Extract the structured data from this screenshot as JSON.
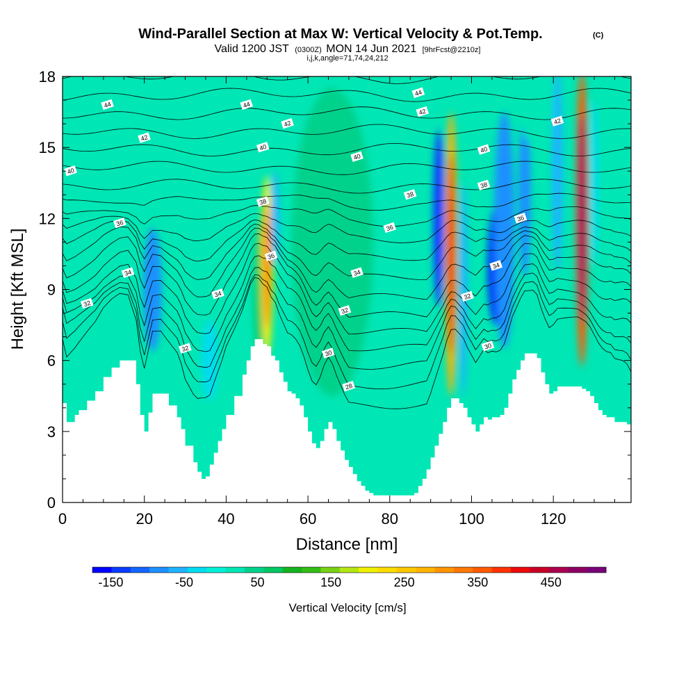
{
  "chart_data": {
    "type": "heatmap",
    "title": "Wind-Parallel Section at Max W: Vertical Velocity & Pot.Temp.",
    "title_mark": "(C)",
    "subtitle_parts": [
      "Valid 1200 JST",
      "(0300Z)",
      "MON 14 Jun 2021",
      "[9hrFcst@2210z]"
    ],
    "subtitle_line2": "i,j,k,angle=71,74,24,212",
    "xlabel": "Distance [nm]",
    "ylabel": "Height [Kft MSL]",
    "xlim": [
      0,
      139
    ],
    "ylim": [
      0,
      18
    ],
    "x_ticks": [
      0,
      20,
      40,
      60,
      80,
      100,
      120
    ],
    "y_ticks": [
      0,
      3,
      6,
      9,
      12,
      15,
      18
    ],
    "x_tick_labels": [
      "0",
      "20",
      "40",
      "60",
      "80",
      "100",
      "120"
    ],
    "y_tick_labels": [
      "0",
      "3",
      "6",
      "9",
      "12",
      "15",
      "18"
    ],
    "colorbar": {
      "label": "Vertical Velocity [cm/s]",
      "tick_values": [
        -150,
        -50,
        50,
        150,
        250,
        350,
        450
      ],
      "tick_labels": [
        "-150",
        "-50",
        "50",
        "150",
        "250",
        "350",
        "450"
      ],
      "range": [
        -175,
        525
      ],
      "colors": [
        "#0000ff",
        "#0a3cff",
        "#1464ff",
        "#1e90ff",
        "#1eb4ff",
        "#00dcf0",
        "#00f0d8",
        "#00e6b4",
        "#00d28c",
        "#00c864",
        "#14b41e",
        "#32be14",
        "#78d214",
        "#b4e614",
        "#f0f000",
        "#ffdc00",
        "#ffc800",
        "#ffb400",
        "#ff9600",
        "#ff7800",
        "#ff5a00",
        "#ff3200",
        "#eb0a0a",
        "#c80028",
        "#aa0050",
        "#8c0064",
        "#780078"
      ]
    },
    "terrain_profile": {
      "x": [
        0,
        1,
        3,
        4,
        6,
        8,
        10,
        12,
        14,
        16,
        18,
        19,
        20,
        21,
        22,
        23,
        24,
        26,
        28,
        29,
        30,
        32,
        33,
        34,
        35,
        36,
        37,
        38,
        39,
        40,
        42,
        44,
        45,
        46,
        47,
        48,
        49,
        50,
        51,
        52,
        53,
        54,
        55,
        56,
        57,
        58,
        59,
        60,
        61,
        62,
        63,
        64,
        65,
        66,
        67,
        68,
        69,
        70,
        71,
        72,
        73,
        74,
        75,
        76,
        77,
        78,
        79,
        80,
        81,
        82,
        83,
        84,
        85,
        86,
        87,
        88,
        89,
        90,
        91,
        92,
        93,
        94,
        95,
        96,
        97,
        98,
        99,
        100,
        101,
        102,
        103,
        104,
        105,
        106,
        107,
        108,
        109,
        110,
        111,
        112,
        113,
        114,
        115,
        116,
        117,
        118,
        119,
        120,
        121,
        122,
        123,
        124,
        125,
        126,
        127,
        128,
        129,
        130,
        131,
        132,
        133,
        134,
        135,
        136,
        137,
        138,
        139
      ],
      "z": [
        4.2,
        3.4,
        3.7,
        3.9,
        4.3,
        4.7,
        5.3,
        5.7,
        6.0,
        6.0,
        5.0,
        3.7,
        3.0,
        3.8,
        4.6,
        4.6,
        4.6,
        4.1,
        3.6,
        3.1,
        2.4,
        1.7,
        1.3,
        1.0,
        1.1,
        1.6,
        2.1,
        2.6,
        3.1,
        3.7,
        4.5,
        5.4,
        6.0,
        6.6,
        6.9,
        6.9,
        6.7,
        6.6,
        6.2,
        6.0,
        5.5,
        5.1,
        4.7,
        4.6,
        4.4,
        4.1,
        3.6,
        3.0,
        2.5,
        2.3,
        2.6,
        3.1,
        3.4,
        3.1,
        2.6,
        2.2,
        1.8,
        1.5,
        1.2,
        0.9,
        0.7,
        0.5,
        0.4,
        0.3,
        0.3,
        0.3,
        0.3,
        0.3,
        0.3,
        0.3,
        0.3,
        0.3,
        0.3,
        0.4,
        0.7,
        1.0,
        1.4,
        1.9,
        2.4,
        2.9,
        3.4,
        4.0,
        4.4,
        4.4,
        4.2,
        4.0,
        3.6,
        3.3,
        3.0,
        3.3,
        3.6,
        3.5,
        3.6,
        3.6,
        3.7,
        4.0,
        4.6,
        5.2,
        5.6,
        6.0,
        6.3,
        6.3,
        6.3,
        6.1,
        5.5,
        5.0,
        4.6,
        4.7,
        4.9,
        4.9,
        4.9,
        4.9,
        4.9,
        4.9,
        4.8,
        4.7,
        4.5,
        4.2,
        3.9,
        3.7,
        3.6,
        3.6,
        3.4,
        3.4,
        3.4,
        3.3,
        3.0
      ],
      "fill_color": "#ffffff"
    },
    "background_color": "#00e6b4",
    "velocity_features": [
      {
        "x": 22,
        "z0": 6.8,
        "z1": 12.0,
        "cz": 9.0,
        "w": 2.2,
        "value": -90
      },
      {
        "x": 36,
        "z0": 4.6,
        "z1": 8.0,
        "cz": 6.0,
        "w": 2.0,
        "value": -40
      },
      {
        "x": 48,
        "z0": 6.9,
        "z1": 12.5,
        "cz": 9.0,
        "w": 1.2,
        "value": 70
      },
      {
        "x": 50,
        "z0": 6.6,
        "z1": 14.2,
        "cz": 10.0,
        "w": 1.5,
        "value": 200
      },
      {
        "x": 52,
        "z0": 10.0,
        "z1": 14.0,
        "cz": 12.0,
        "w": 1.0,
        "value": -60
      },
      {
        "x": 38,
        "z0": 8.0,
        "z1": 17.0,
        "cz": 13.0,
        "w": 4.0,
        "value": 30
      },
      {
        "x": 66,
        "z0": 5.0,
        "z1": 18.0,
        "cz": 11.0,
        "w": 10.0,
        "value": 35
      },
      {
        "x": 92,
        "z0": 8.0,
        "z1": 15.5,
        "cz": 12.0,
        "w": 1.4,
        "value": -130
      },
      {
        "x": 95,
        "z0": 4.5,
        "z1": 16.5,
        "cz": 10.5,
        "w": 1.5,
        "value": 280
      },
      {
        "x": 98,
        "z0": 5.0,
        "z1": 14.0,
        "cz": 9.0,
        "w": 1.0,
        "value": -50
      },
      {
        "x": 106,
        "z0": 8.0,
        "z1": 13.0,
        "cz": 10.0,
        "w": 2.0,
        "value": -150
      },
      {
        "x": 108,
        "z0": 7.0,
        "z1": 17.0,
        "cz": 11.5,
        "w": 2.5,
        "value": -80
      },
      {
        "x": 113,
        "z0": 10.0,
        "z1": 17.0,
        "cz": 13.0,
        "w": 1.5,
        "value": -90
      },
      {
        "x": 121,
        "z0": 9.0,
        "z1": 17.5,
        "cz": 14.0,
        "w": 1.3,
        "value": -70
      },
      {
        "x": 127,
        "z0": 5.0,
        "z1": 17.5,
        "cz": 12.0,
        "w": 1.5,
        "value": 360
      },
      {
        "x": 130,
        "z0": 10.0,
        "z1": 17.0,
        "cz": 13.5,
        "w": 1.0,
        "value": -40
      },
      {
        "x": 116,
        "z0": 15.0,
        "z1": 18.0,
        "cz": 16.5,
        "w": 4.0,
        "value": 30
      },
      {
        "x": 25,
        "z0": 13.5,
        "z1": 17.5,
        "cz": 15.0,
        "w": 6.0,
        "value": 25
      }
    ],
    "theta_contours": {
      "levels": [
        26,
        27,
        28,
        29,
        30,
        31,
        32,
        33,
        34,
        35,
        36,
        37,
        38,
        39,
        40,
        41,
        42,
        43,
        44,
        45,
        46
      ],
      "labels": [
        {
          "value": 44,
          "text": "44",
          "x": 11,
          "z": 16.8
        },
        {
          "value": 44,
          "text": "44",
          "x": 45,
          "z": 16.8
        },
        {
          "value": 44,
          "text": "44",
          "x": 87,
          "z": 17.3
        },
        {
          "value": 42,
          "text": "42",
          "x": 20,
          "z": 15.4
        },
        {
          "value": 42,
          "text": "42",
          "x": 55,
          "z": 16.0
        },
        {
          "value": 42,
          "text": "42",
          "x": 88,
          "z": 16.5
        },
        {
          "value": 42,
          "text": "42",
          "x": 121,
          "z": 16.1
        },
        {
          "value": 40,
          "text": "40",
          "x": 2,
          "z": 14.0
        },
        {
          "value": 40,
          "text": "40",
          "x": 49,
          "z": 15.0
        },
        {
          "value": 40,
          "text": "40",
          "x": 72,
          "z": 14.6
        },
        {
          "value": 40,
          "text": "40",
          "x": 103,
          "z": 14.9
        },
        {
          "value": 38,
          "text": "38",
          "x": 49,
          "z": 12.7
        },
        {
          "value": 38,
          "text": "38",
          "x": 85,
          "z": 13.0
        },
        {
          "value": 38,
          "text": "38",
          "x": 103,
          "z": 13.4
        },
        {
          "value": 36,
          "text": "36",
          "x": 14,
          "z": 11.8
        },
        {
          "value": 36,
          "text": "36",
          "x": 80,
          "z": 11.6
        },
        {
          "value": 36,
          "text": "36",
          "x": 112,
          "z": 12.0
        },
        {
          "value": 36,
          "text": "36",
          "x": 51,
          "z": 10.4
        },
        {
          "value": 34,
          "text": "34",
          "x": 16,
          "z": 9.7
        },
        {
          "value": 34,
          "text": "34",
          "x": 72,
          "z": 9.7
        },
        {
          "value": 34,
          "text": "34",
          "x": 38,
          "z": 8.8
        },
        {
          "value": 34,
          "text": "34",
          "x": 106,
          "z": 10.0
        },
        {
          "value": 32,
          "text": "32",
          "x": 6,
          "z": 8.4
        },
        {
          "value": 32,
          "text": "32",
          "x": 69,
          "z": 8.1
        },
        {
          "value": 32,
          "text": "32",
          "x": 99,
          "z": 8.7
        },
        {
          "value": 32,
          "text": "32",
          "x": 30,
          "z": 6.5
        },
        {
          "value": 30,
          "text": "30",
          "x": 65,
          "z": 6.3
        },
        {
          "value": 30,
          "text": "30",
          "x": 104,
          "z": 6.6
        },
        {
          "value": 28,
          "text": "28",
          "x": 70,
          "z": 4.9
        }
      ]
    }
  }
}
